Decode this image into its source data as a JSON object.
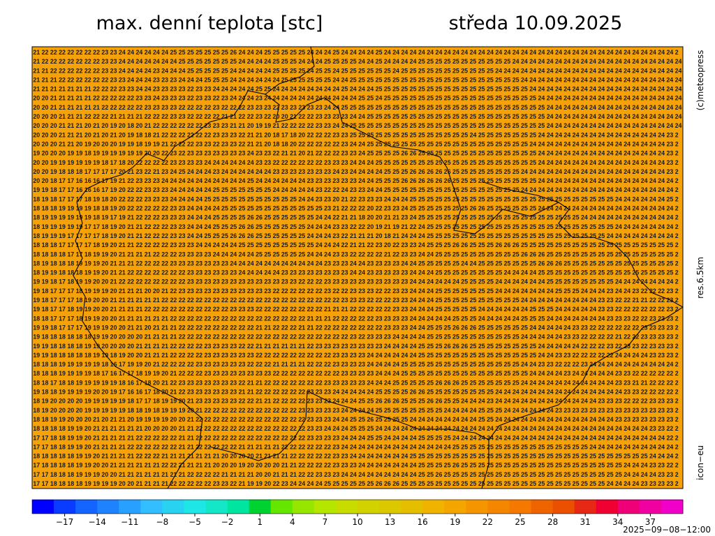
{
  "header": {
    "title": "max. denní teplota [stc]",
    "date": "středa 10.09.2025"
  },
  "side": {
    "copyright": "(c)meteopress",
    "resolution": "res.6.5km",
    "model": "icon−eu"
  },
  "map": {
    "background": "#f5a20a",
    "rows": [
      "1 21 22 22 22 22 22 22 22 23 23 24 24 24 24 24 24 25 25 25 25 25 25 25 26 24 24 24 25 25 25 25 25 24 24 24 25 24 24 24 24 25 24 24 24 24 24 24 24 24 24 24 24 24 24 24 24 24 24 24 24 24 24 24 24 24 24 24 24 24 24 24 24 24 24 24 2",
      "1 21 22 22 22 22 22 22 22 23 23 24 24 24 24 24 24 24 25 25 25 25 25 25 25 24 24 24 24 25 25 25 24 24 24 25 25 25 25 24 24 25 24 24 24 24 25 25 25 25 25 25 25 25 25 25 25 24 24 24 24 24 24 24 24 24 24 24 24 24 24 24 24 24 24 24 24 2",
      "1 21 21 22 22 22 22 22 22 23 23 24 24 24 24 23 24 24 24 25 25 25 25 25 24 24 24 24 24 25 25 25 25 24 25 25 24 25 25 25 25 25 25 24 25 25 25 25 25 25 25 25 25 25 25 24 24 24 24 24 24 24 24 24 24 24 24 24 24 24 24 24 24 24 24 24 24 2",
      "0 21 21 21 22 22 22 22 22 22 23 23 24 24 24 23 23 23 24 24 24 25 25 25 24 24 24 24 24 24 25 25 25 25 25 25 24 24 25 25 25 25 25 25 25 25 25 25 25 25 25 25 25 25 25 25 25 25 24 24 24 24 24 24 24 24 24 24 24 24 24 24 24 24 24 24 24 2",
      "0 21 21 21 21 21 21 21 22 22 22 23 23 24 24 23 23 23 23 22 23 23 24 24 24 24 24 25 25 24 24 24 24 24 24 24 24 25 24 24 24 25 25 25 25 25 25 25 25 25 25 25 25 25 25 25 25 25 25 24 24 24 24 24 24 24 24 24 24 24 24 24 24 24 24 24 24 2",
      "0 20 20 21 21 21 21 21 22 22 22 22 22 23 23 24 23 23 23 22 23 23 22 23 24 24 24 23 24 24 24 24 24 24 24 24 24 24 24 25 25 24 25 25 25 25 25 25 25 25 25 25 25 25 25 25 25 25 25 25 24 24 24 24 24 24 24 24 24 24 24 24 24 24 24 24 24 2",
      "0 20 20 21 21 21 21 21 21 22 22 22 22 22 23 23 23 23 22 22 22 22 23 22 22 22 23 23 23 22 23 23 23 23 23 24 24 25 25 25 25 25 25 25 25 25 25 25 25 25 25 25 25 25 25 25 25 25 25 25 25 24 24 24 24 24 24 24 24 24 24 24 24 24 24 24 24 2",
      "0 20 20 20 21 21 21 22 22 22 21 21 21 21 22 22 22 23 23 22 22 22 22 21 21 22 22 23 22 20 20 21 22 22 23 23 23 23 24 24 25 25 25 25 25 25 25 25 25 25 25 25 25 25 25 25 25 25 25 25 25 24 24 24 24 24 24 24 24 24 24 24 24 24 24 24 24 2",
      "0 20 20 20 21 21 21 20 21 20 19 20 18 20 21 22 22 22 22 22 22 23 23 23 21 21 20 19 19 21 22 22 22 22 23 23 24 24 25 25 25 25 25 25 25 25 25 25 25 25 25 25 25 25 25 25 25 25 25 25 25 24 24 24 24 24 24 24 24 24 24 24 24 24 24 24 24 2",
      "0 20 20 20 21 21 21 20 21 20 21 20 19 18 18 21 22 22 22 22 22 22 23 23 23 22 21 21 20 18 17 18 20 22 22 22 23 23 25 25 25 25 25 25 25 25 25 25 25 25 25 25 24 25 25 25 25 25 25 25 24 24 24 24 24 24 24 24 24 24 24 24 24 24 24 23 2",
      "9 20 20 20 21 21 20 19 20 20 20 19 19 18 19 19 21 22 22 22 23 23 22 23 23 22 21 21 20 18 18 20 22 22 22 22 22 23 24 24 25 25 25 25 25 25 25 25 25 25 25 25 25 25 25 25 25 25 25 24 24 24 24 24 24 24 24 24 24 24 24 24 24 24 24 23 2",
      "9 19 20 20 20 19 19 18 19 19 19 19 19 19 20 20 22 23 22 23 23 23 23 23 23 23 24 23 23 22 21 21 20 21 22 22 22 23 23 24 25 25 25 25 26 26 25 25 25 25 25 25 25 25 25 25 25 25 25 25 24 24 24 24 24 24 24 24 24 24 24 24 24 24 24 23 2",
      "9 20 20 19 19 19 19 19 19 18 17 18 20 22 22 22 22 23 23 23 23 24 24 24 24 24 24 23 23 22 22 22 22 22 22 23 23 23 24 24 24 25 25 25 25 25 25 25 25 25 25 25 25 25 25 25 25 25 25 25 24 24 24 24 24 24 24 24 24 24 24 24 24 24 24 23 2",
      "9 20 20 19 18 18 18 17 17 17 17 20 21 23 22 21 23 24 25 24 24 24 23 24 24 24 24 24 24 23 23 23 23 23 23 23 24 23 24 24 24 24 25 25 25 26 26 26 26 26 25 25 25 25 25 25 25 25 24 24 24 24 24 24 24 24 24 24 24 24 24 24 24 24 24 23 2",
      "9 20 20 18 17 17 16 16 16 17 19 21 22 23 23 23 24 24 24 24 24 24 24 24 24 24 25 24 24 24 24 24 24 23 23 23 23 23 23 24 24 25 25 25 26 26 26 26 26 26 25 25 25 25 25 25 25 25 25 25 24 24 24 24 24 24 24 24 24 24 24 24 24 24 24 24 2",
      "9 19 19 18 17 17 16 16 16 17 19 20 22 22 23 23 23 24 24 24 24 24 25 25 25 25 25 25 25 24 24 24 24 24 23 22 22 24 23 23 24 24 25 25 25 25 25 25 25 25 25 25 25 25 25 25 25 25 24 24 24 24 24 24 24 24 24 24 24 24 24 24 24 24 24 24 2",
      "9 18 19 18 17 17 17 18 19 18 20 22 22 22 23 23 23 24 24 24 24 25 25 25 25 25 25 25 25 25 25 25 24 24 23 23 20 21 22 23 23 23 24 24 24 25 25 25 25 25 25 25 25 25 25 25 25 25 25 25 25 25 25 25 25 25 25 25 25 24 24 24 24 24 24 25 2",
      "9 18 18 18 19 19 19 19 18 18 19 20 22 22 22 22 22 23 23 24 24 24 24 25 25 25 25 25 25 25 25 25 25 25 25 23 21 22 22 22 20 22 23 23 24 25 25 25 25 25 25 25 26 26 25 25 25 25 25 25 24 24 24 24 24 24 24 24 24 24 24 24 24 24 24 24 2",
      "8 18 19 19 19 19 19 19 18 19 17 19 21 22 22 22 23 23 23 24 24 24 25 25 25 25 26 26 25 25 25 25 25 25 24 24 22 21 21 18 20 20 21 21 23 24 25 25 25 25 25 25 25 25 25 25 25 25 25 25 25 25 25 25 25 24 24 24 24 24 24 24 24 24 24 24 2",
      "8 18 19 19 19 19 19 17 17 18 19 20 21 21 22 22 22 23 23 24 24 24 25 25 25 26 26 25 25 25 25 25 25 24 24 24 23 23 22 22 20 19 21 19 21 22 24 25 25 25 25 25 25 25 25 25 25 25 25 25 25 25 25 25 25 25 25 25 25 24 24 24 24 24 24 24 2",
      "8 18 19 19 19 17 17 17 17 18 19 20 21 21 22 22 22 23 23 24 24 25 25 25 26 26 26 25 25 25 25 25 25 24 24 24 23 22 21 21 21 20 18 21 24 24 24 25 25 25 25 25 25 25 25 25 25 25 25 25 25 25 25 25 25 25 25 25 24 24 24 24 24 24 24 24 2",
      "7 18 18 18 17 17 17 17 18 19 20 21 21 22 22 22 22 23 23 23 24 24 24 24 24 25 25 25 25 25 25 25 25 25 24 24 24 22 21 21 22 23 20 22 23 23 24 25 25 25 26 26 25 25 25 26 26 26 25 25 25 25 25 25 25 25 25 25 25 25 25 25 25 25 25 25 2",
      "8 18 18 18 18 17 17 18 19 19 20 21 21 21 21 22 22 22 23 23 23 23 24 24 24 24 24 25 25 25 25 25 25 24 24 24 23 23 22 22 22 22 21 22 23 23 24 24 25 25 25 25 25 25 25 25 25 25 26 26 26 25 25 25 25 25 25 25 25 25 25 25 25 25 25 25 2",
      "8 18 19 18 18 18 19 19 19 20 21 21 21 22 22 22 22 23 23 23 23 23 23 23 24 24 24 24 24 24 24 24 24 24 24 23 23 23 24 24 23 23 23 23 24 24 25 25 25 25 25 24 24 25 25 25 25 25 25 25 26 26 26 25 25 25 25 25 25 25 25 25 25 25 25 25 2",
      "8 18 19 19 18 18 18 19 19 20 21 21 22 22 22 22 22 22 22 23 23 23 23 23 23 24 24 24 24 24 23 23 23 23 23 23 23 23 24 24 23 23 23 23 23 24 24 24 25 25 25 25 25 25 25 25 24 24 24 24 25 25 25 25 25 25 25 25 25 25 25 25 25 25 25 25 2",
      "8 19 19 18 17 18 19 19 20 20 21 22 22 22 22 22 22 22 22 23 23 23 23 23 23 23 23 23 23 23 23 23 22 22 22 23 23 23 23 23 23 23 23 23 23 24 24 24 24 24 24 25 25 25 25 24 24 24 24 24 24 25 25 25 25 25 25 25 25 24 24 24 24 24 24 24 2",
      "9 19 18 17 17 17 18 19 19 19 20 21 21 21 20 20 21 22 23 23 23 23 23 23 23 23 23 23 23 22 22 22 22 22 22 23 22 22 23 23 23 22 22 23 23 24 24 24 25 25 25 25 25 25 25 24 24 24 24 24 24 24 25 25 25 24 24 24 23 24 24 23 22 22 22 23 2",
      "9 19 18 17 17 17 18 19 20 20 21 21 21 21 21 21 22 22 22 22 22 22 22 22 22 22 22 22 22 22 22 22 22 22 22 22 22 23 23 23 22 22 22 23 23 24 24 24 25 25 25 25 25 25 25 25 25 25 24 24 24 24 24 24 24 24 24 23 23 22 22 21 21 22 22 23 2",
      "9 19 18 17 17 18 19 19 20 20 21 21 21 21 22 22 22 22 22 22 22 22 22 22 23 23 23 22 22 22 22 22 22 22 22 21 21 21 22 22 22 22 22 23 23 24 24 24 25 25 25 25 25 24 24 24 24 24 24 25 25 25 24 24 24 24 24 23 23 22 22 22 22 22 22 23 2",
      "8 18 18 17 17 17 18 19 19 20 20 21 21 21 21 21 21 22 22 22 22 22 22 22 22 22 22 22 22 22 22 22 22 21 21 21 22 22 22 22 22 23 23 23 23 24 24 24 24 24 25 25 25 24 24 24 24 24 25 25 25 24 24 24 24 24 24 24 23 23 23 22 22 23 23 23 2",
      "9 19 19 18 17 17 17 19 19 19 20 20 21 21 20 21 21 21 22 22 22 22 22 22 22 22 22 21 21 22 22 22 21 21 22 22 22 22 22 22 22 22 23 23 23 24 24 25 25 25 26 26 26 25 25 25 25 25 25 24 24 24 24 24 23 23 22 22 22 22 22 22 23 23 23 23 2",
      "9 19 18 18 18 18 18 18 19 19 20 20 20 20 21 21 21 21 22 22 22 22 22 22 22 22 22 22 22 22 22 22 22 22 22 22 22 22 23 22 23 23 23 24 24 24 24 25 25 25 25 25 25 25 25 25 25 25 24 24 24 24 24 23 23 22 22 22 22 21 22 22 23 23 23 23 2",
      "9 19 19 18 18 18 18 19 19 20 20 20 20 21 21 21 21 22 22 22 22 23 23 23 23 22 22 21 21 21 21 21 21 22 23 23 23 23 23 23 23 23 24 24 24 24 25 25 25 26 26 26 25 25 25 25 25 25 25 25 24 24 24 24 24 22 22 22 23 22 23 23 22 23 23 23 2",
      "9 19 19 18 18 18 18 18 19 19 18 19 20 20 21 21 21 22 22 22 22 23 23 23 23 23 23 22 22 22 22 22 22 22 22 22 23 23 23 23 24 24 24 24 24 24 25 25 25 25 25 25 25 25 25 25 25 25 25 25 24 24 23 23 22 22 22 22 22 24 24 24 24 23 23 23 2",
      "9 18 18 18 19 19 19 19 19 18 16 17 19 19 20 21 22 22 22 22 23 23 23 23 23 23 22 22 22 21 21 21 21 22 22 22 23 23 23 23 24 24 24 24 25 25 25 25 25 25 25 25 25 25 25 25 25 25 24 24 23 23 22 22 22 23 24 24 24 24 24 24 24 24 24 24 2",
      "9 18 18 18 19 19 19 19 18 17 16 17 17 18 19 19 20 21 22 22 22 23 23 23 23 23 23 23 23 22 22 22 22 22 22 22 22 23 23 23 23 24 24 24 25 25 25 25 25 25 25 25 25 25 25 25 25 25 25 24 24 24 24 23 24 24 24 24 24 23 23 22 22 22 22 22 2",
      "8 18 18 17 18 18 19 19 19 19 19 18 16 17 18 20 21 22 23 23 23 23 23 23 23 22 21 21 22 22 22 22 22 22 22 23 23 23 23 23 24 24 24 25 25 25 25 25 26 26 26 25 25 25 25 25 25 25 24 24 24 24 24 24 24 24 24 24 24 23 23 21 21 22 22 22 2",
      "8 19 18 18 19 19 19 19 20 20 19 17 16 16 17 18 20 21 22 23 23 23 23 23 23 21 21 22 22 22 22 22 22 23 23 23 24 24 24 24 24 25 25 25 25 26 26 25 25 25 25 25 25 25 25 24 24 24 24 24 24 24 24 24 24 24 24 24 24 24 23 23 22 22 22 22 2",
      "8 18 19 20 20 20 20 19 19 19 19 19 18 17 17 18 19 19 20 21 23 23 23 23 23 22 22 21 21 22 22 22 22 23 23 23 24 24 24 25 25 26 26 26 25 25 25 26 26 25 25 24 24 24 23 24 24 24 24 24 24 24 24 24 24 24 24 23 23 23 22 22 22 23 23 23 2",
      "8 18 19 20 20 20 20 19 19 19 19 19 18 18 19 18 19 19 19 20 21 22 22 22 22 22 22 22 22 22 22 22 23 23 23 23 23 24 24 24 24 25 25 25 25 25 25 25 25 24 24 24 24 25 25 25 24 24 24 24 24 24 23 23 23 23 23 23 23 23 23 23 23 23 23 23 2",
      "8 18 18 19 19 20 20 20 21 20 21 21 20 19 19 19 19 20 20 21 22 22 22 22 22 22 22 22 22 22 22 22 22 23 23 23 24 24 25 25 26 25 25 25 25 24 24 24 24 24 24 24 24 25 25 24 24 24 24 24 24 24 24 24 24 24 24 24 24 23 23 23 23 23 23 23 2",
      "7 18 18 18 18 19 19 20 21 21 21 21 21 21 20 20 20 20 21 21 22 22 22 22 22 22 22 22 22 22 22 22 22 23 23 24 24 24 25 25 25 24 24 24 24 24 24 24 24 24 24 24 24 24 24 24 24 24 24 24 24 24 24 24 24 24 24 24 24 24 24 24 24 23 23 22 2",
      "7 17 17 18 18 19 19 20 21 21 21 21 21 22 22 22 22 22 21 21 22 22 22 22 22 22 22 22 22 22 22 22 22 23 23 23 23 24 24 24 25 25 24 24 24 24 25 25 25 25 24 24 24 24 24 24 24 24 24 24 24 24 24 24 24 24 24 24 24 24 24 24 24 24 24 22 2",
      "7 17 17 18 18 19 19 20 21 21 21 21 22 22 22 22 22 22 21 21 22 22 22 22 22 21 21 21 21 21 22 22 22 22 22 22 23 24 24 24 24 24 24 24 24 24 24 24 24 24 25 25 25 25 25 25 25 25 25 25 25 25 25 25 25 25 24 24 24 24 24 24 24 24 24 24 2",
      "7 18 18 18 18 18 19 19 20 21 21 21 21 22 22 22 21 21 21 21 21 21 21 20 20 20 20 21 21 21 21 22 22 22 22 22 23 23 24 24 24 24 24 24 24 25 25 25 25 25 25 25 25 25 25 25 25 25 25 25 25 25 25 25 25 25 25 25 25 25 25 25 25 24 24 24 2",
      "8 17 18 18 18 18 19 19 20 20 21 21 21 21 21 21 22 22 21 21 21 21 20 20 20 19 20 20 20 20 21 21 22 22 22 22 23 23 23 24 24 24 24 24 24 24 25 25 25 25 26 25 25 25 25 25 25 25 25 25 25 25 25 25 25 25 25 25 25 25 24 24 24 23 23 22 2",
      "8 17 17 18 18 18 19 19 19 20 20 21 21 21 21 21 21 21 21 22 22 22 22 21 21 21 21 20 20 21 21 21 22 22 23 23 23 24 24 24 24 24 24 24 24 24 25 25 26 25 25 25 25 25 25 25 25 25 25 25 25 25 25 25 25 25 25 25 25 25 24 24 24 24 23 23 2",
      "8 17 17 18 18 18 18 19 19 19 19 20 20 21 21 21 21 22 22 22 22 22 23 23 22 21 19 19 20 22 23 24 24 24 24 25 25 25 25 25 25 26 26 26 25 25 25 25 25 25 25 25 25 25 25 25 25 25 25 25 25 25 25 25 25 25 25 25 24 24 24 24 23 23 23 23 2"
    ]
  },
  "colorbar": {
    "lim": [
      -20,
      40
    ],
    "colors": [
      "#0000ff",
      "#0a3cff",
      "#1464ff",
      "#1e82ff",
      "#28a0ff",
      "#32beff",
      "#28d2f0",
      "#1ee6e6",
      "#14e6c8",
      "#00e6a0",
      "#00d232",
      "#64e600",
      "#96e600",
      "#b4e600",
      "#c8dc00",
      "#d2d200",
      "#dcc800",
      "#e6be00",
      "#f0b400",
      "#f5a500",
      "#f59600",
      "#f58700",
      "#f57800",
      "#f06400",
      "#eb5000",
      "#e62814",
      "#f00032",
      "#f00078",
      "#f000a0",
      "#f000c8"
    ],
    "ticks": [
      {
        "value": -17,
        "label": "−17"
      },
      {
        "value": -14,
        "label": "−14"
      },
      {
        "value": -11,
        "label": "−11"
      },
      {
        "value": -8,
        "label": "−8"
      },
      {
        "value": -5,
        "label": "−5"
      },
      {
        "value": -2,
        "label": "−2"
      },
      1,
      4,
      7,
      10,
      13,
      16,
      19,
      22,
      25,
      28,
      31,
      34,
      37
    ]
  },
  "footer": {
    "timestamp": "2025−09−08−12:00"
  }
}
